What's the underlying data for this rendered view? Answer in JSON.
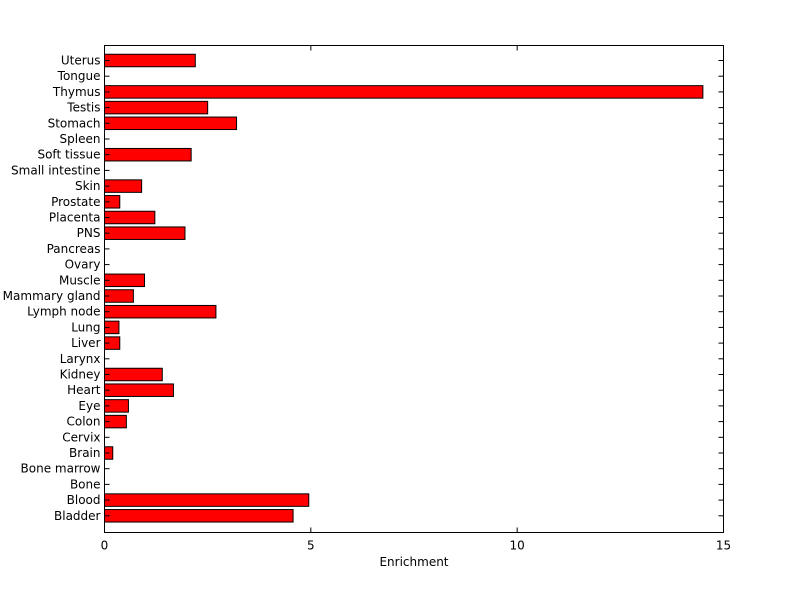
{
  "chart_data": {
    "type": "bar",
    "orientation": "horizontal",
    "categories": [
      "Uterus",
      "Tongue",
      "Thymus",
      "Testis",
      "Stomach",
      "Spleen",
      "Soft tissue",
      "Small intestine",
      "Skin",
      "Prostate",
      "Placenta",
      "PNS",
      "Pancreas",
      "Ovary",
      "Muscle",
      "Mammary gland",
      "Lymph node",
      "Lung",
      "Liver",
      "Larynx",
      "Kidney",
      "Heart",
      "Eye",
      "Colon",
      "Cervix",
      "Brain",
      "Bone marrow",
      "Bone",
      "Blood",
      "Bladder"
    ],
    "values": [
      2.2,
      0,
      14.5,
      2.5,
      3.2,
      0,
      2.1,
      0,
      0.9,
      0.37,
      1.22,
      1.95,
      0,
      0,
      0.97,
      0.7,
      2.7,
      0.35,
      0.37,
      0,
      1.4,
      1.67,
      0.58,
      0.53,
      0,
      0.2,
      0,
      0,
      4.95,
      4.57
    ],
    "xlabel": "Enrichment",
    "xlim": [
      0,
      15
    ],
    "xticks": [
      0,
      5,
      10,
      15
    ],
    "bar_color": "#ff0000",
    "bar_edge_color": "#000000",
    "grid": false
  }
}
